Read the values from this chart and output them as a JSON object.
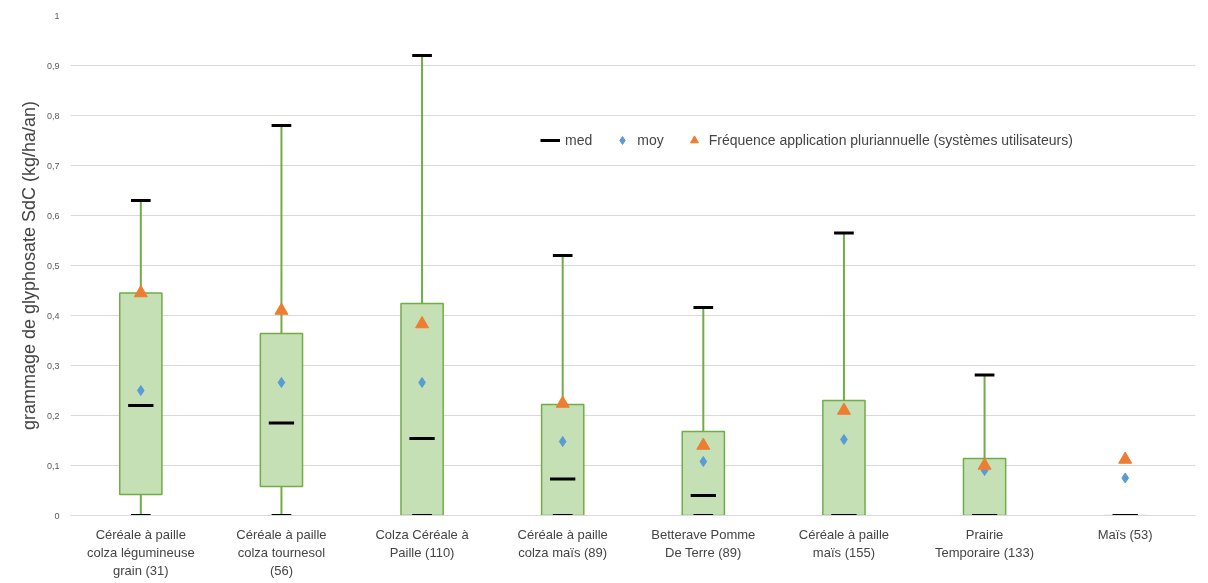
{
  "chart_data": {
    "type": "box",
    "ylabel": "grammage de glyphosate SdC (kg/ha/an)",
    "categories": [
      "Céréale à paille colza légumineuse grain (31)",
      "Céréale à paille colza tournesol (56)",
      "Colza Céréale à Paille (110)",
      "Céréale à paille colza maïs (89)",
      "Betterave Pomme De Terre (89)",
      "Céréale à paille maïs (155)",
      "Prairie Temporaire (133)",
      "Maïs (53)"
    ],
    "series": [
      {
        "color": "#c5e0b4",
        "boxes": [
          {
            "low": 0,
            "q1": 0.042,
            "median": 0.22,
            "q3": 0.445,
            "high": 0.63
          },
          {
            "low": 0,
            "q1": 0.058,
            "median": 0.185,
            "q3": 0.364,
            "high": 0.78
          },
          {
            "low": 0,
            "q1": 0,
            "median": 0.154,
            "q3": 0.424,
            "high": 0.92
          },
          {
            "low": 0,
            "q1": 0,
            "median": 0.073,
            "q3": 0.222,
            "high": 0.52
          },
          {
            "low": 0,
            "q1": 0,
            "median": 0.04,
            "q3": 0.168,
            "high": 0.416
          },
          {
            "low": 0,
            "q1": 0,
            "median": 0,
            "q3": 0.23,
            "high": 0.565
          },
          {
            "low": 0,
            "q1": 0,
            "median": 0,
            "q3": 0.114,
            "high": 0.281
          },
          {
            "low": 0,
            "q1": 0,
            "median": 0,
            "q3": 0,
            "high": 0
          }
        ]
      },
      {
        "type": "scatter",
        "name": "moy",
        "color": "#5b9bd5",
        "marker": "diamond",
        "values": [
          0.25,
          0.266,
          0.266,
          0.148,
          0.108,
          0.152,
          0.09,
          0.075
        ]
      },
      {
        "type": "scatter",
        "name": "Fréquence application pluriannuelle (systèmes utilisateurs)",
        "color": "#ed7d31",
        "marker": "triangle",
        "values": [
          0.445,
          0.41,
          0.383,
          0.224,
          0.14,
          0.21,
          0.1,
          0.112
        ]
      }
    ],
    "ylim": [
      0,
      1
    ],
    "yticks": [
      0,
      {
        "value": 0.1,
        "label": "0,1"
      },
      {
        "value": 0.2,
        "label": "0,2"
      },
      {
        "value": 0.3,
        "label": "0,3"
      },
      {
        "value": 0.4,
        "label": "0,4"
      },
      {
        "value": 0.5,
        "label": "0,5"
      },
      {
        "value": 0.6,
        "label": "0,6"
      },
      {
        "value": 0.7,
        "label": "0,7"
      },
      {
        "value": 0.8,
        "label": "0,8"
      },
      {
        "value": 0.9,
        "label": "0,9"
      },
      1
    ],
    "annotations": [
      "med"
    ],
    "grid": "y",
    "legend": "top right"
  }
}
